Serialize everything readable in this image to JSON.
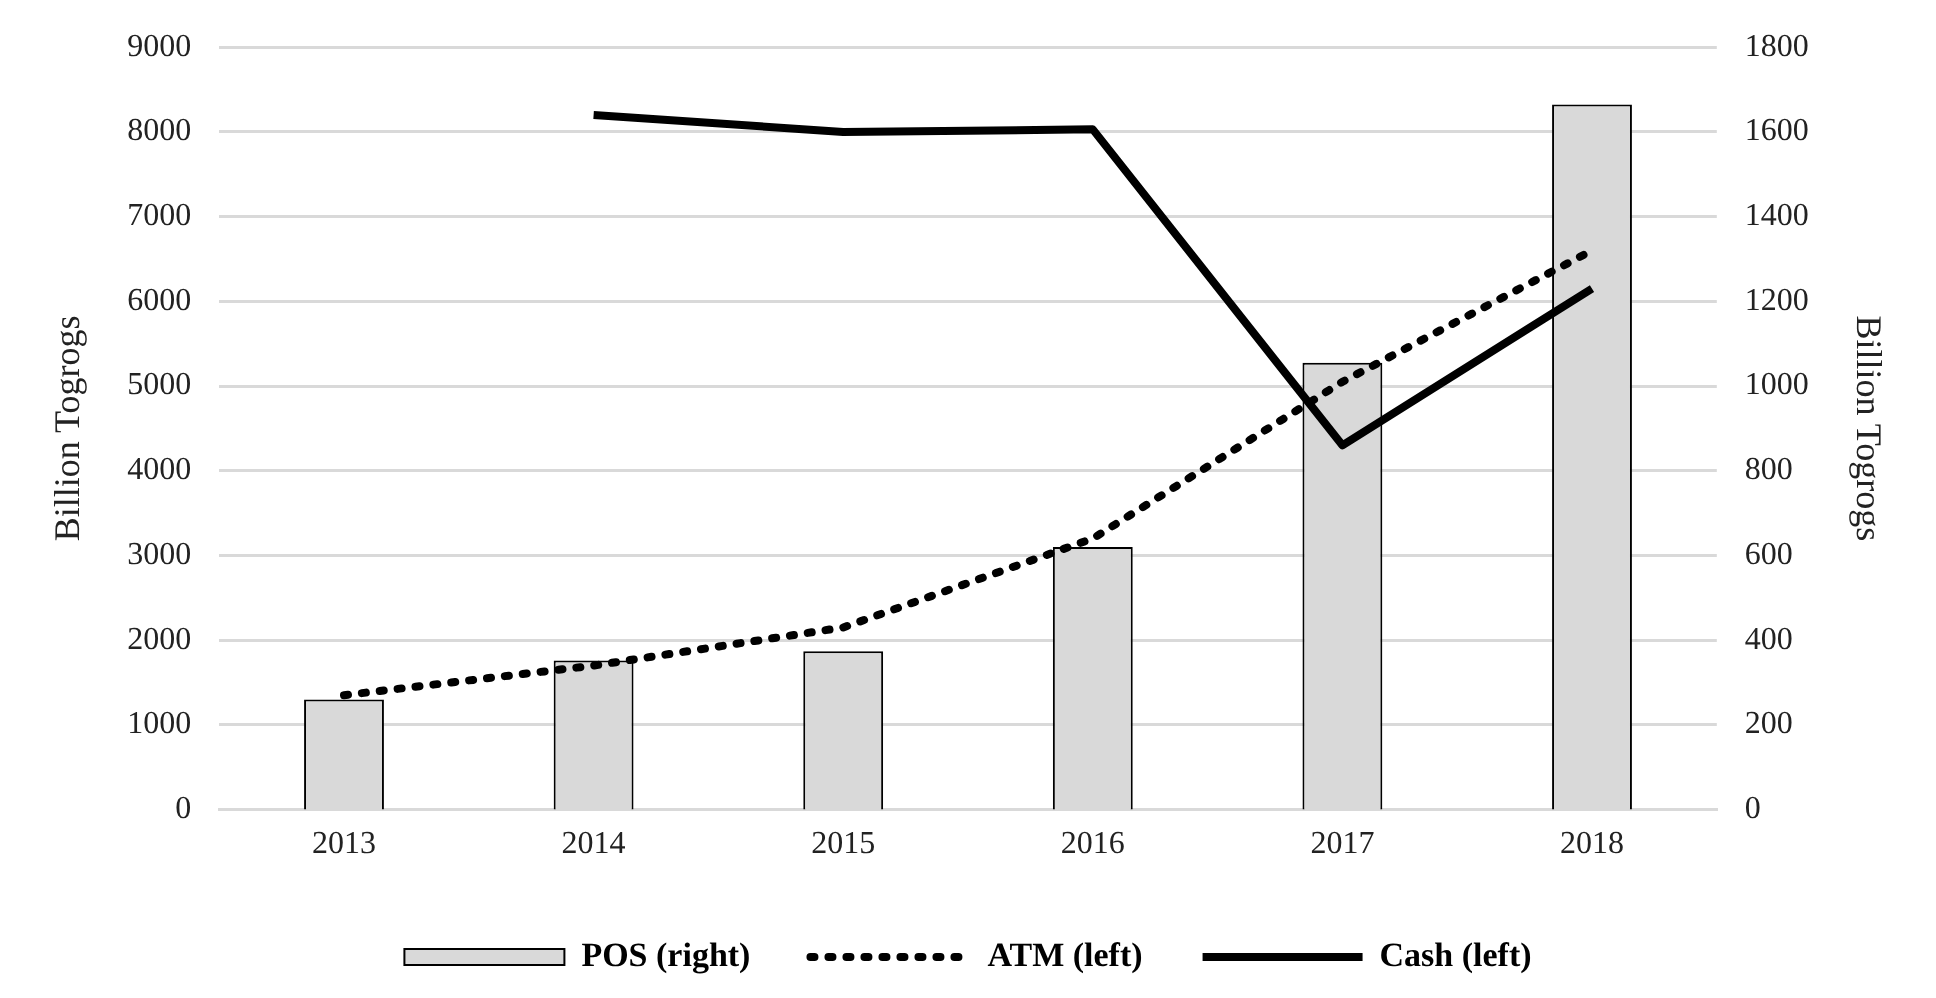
{
  "chart_data": {
    "type": "bar",
    "categories": [
      "2013",
      "2014",
      "2015",
      "2016",
      "2017",
      "2018"
    ],
    "ylabel": "Billion Togrogs",
    "y2label": "Billion Togrogs",
    "series": [
      {
        "name": "POS (right)",
        "axis": "y2",
        "color": "#d9d9d9",
        "values": [
          260,
          352,
          374,
          620,
          1055,
          1665
        ]
      },
      {
        "name": "ATM (left)",
        "type": "line",
        "axis": "y",
        "color": "#000000",
        "line_style": "dotted",
        "values": [
          1350,
          1700,
          2150,
          3200,
          5050,
          6600
        ]
      },
      {
        "name": "Cash (left)",
        "type": "line",
        "axis": "y",
        "color": "#000000",
        "line_style": "solid",
        "values": [
          null,
          8200,
          8000,
          8030,
          4300,
          6150
        ]
      }
    ],
    "ylim": [
      0,
      9000
    ],
    "yticks": [
      0,
      1000,
      2000,
      3000,
      4000,
      5000,
      6000,
      7000,
      8000,
      9000
    ],
    "y2lim": [
      0,
      1800
    ],
    "y2ticks": [
      0,
      200,
      400,
      600,
      800,
      1000,
      1200,
      1400,
      1600,
      1800
    ],
    "grid": "y",
    "legend": "bottom",
    "marker": "none"
  }
}
